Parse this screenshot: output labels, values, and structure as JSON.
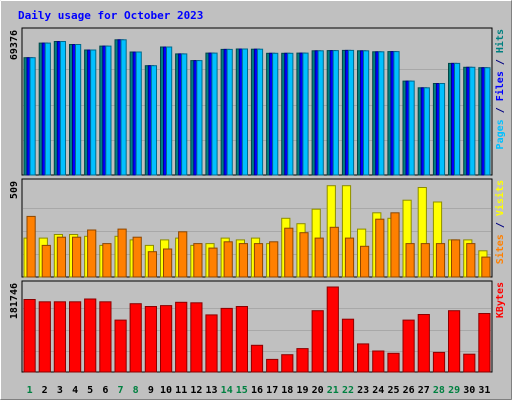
{
  "chart_data": {
    "type": "bar",
    "title": "Daily usage for October 2023",
    "categories": [
      "1",
      "2",
      "3",
      "4",
      "5",
      "6",
      "7",
      "8",
      "9",
      "10",
      "11",
      "12",
      "13",
      "14",
      "15",
      "16",
      "17",
      "18",
      "19",
      "20",
      "21",
      "22",
      "23",
      "24",
      "25",
      "26",
      "27",
      "28",
      "29",
      "30",
      "31"
    ],
    "weekend_days": [
      "1",
      "7",
      "8",
      "14",
      "15",
      "21",
      "22",
      "28",
      "29"
    ],
    "panels": [
      {
        "id": "hits",
        "max_label": "69376",
        "max": 69376,
        "axis_title_parts": [
          {
            "text": "Pages",
            "color": "#00c0ff"
          },
          {
            "text": " / ",
            "color": "#000080"
          },
          {
            "text": "Files",
            "color": "#0000ff"
          },
          {
            "text": " / ",
            "color": "#000080"
          },
          {
            "text": "Hits",
            "color": "#008080"
          }
        ],
        "series": [
          {
            "name": "Hits",
            "color": "#008080",
            "values": [
              57700,
              64900,
              65700,
              64200,
              61500,
              63400,
              66500,
              60500,
              53800,
              63000,
              59600,
              56300,
              60000,
              61800,
              62000,
              61900,
              59900,
              59900,
              60000,
              61100,
              61200,
              61300,
              61100,
              60600,
              60700,
              46200,
              42900,
              45000,
              54900,
              53000,
              52800
            ]
          },
          {
            "name": "Files",
            "color": "#0000ff",
            "values": [
              57700,
              64900,
              65700,
              64200,
              61500,
              63400,
              66500,
              60500,
              53800,
              63000,
              59600,
              56300,
              60000,
              61800,
              62000,
              61900,
              59900,
              59900,
              60000,
              61100,
              61200,
              61300,
              61100,
              60600,
              60700,
              46200,
              42900,
              45000,
              54900,
              53000,
              52800
            ]
          },
          {
            "name": "Pages",
            "color": "#00c0ff",
            "values": [
              57700,
              64900,
              65700,
              64200,
              61500,
              63400,
              66500,
              60500,
              53800,
              63000,
              59600,
              56300,
              60000,
              61800,
              62000,
              61900,
              59900,
              59900,
              60000,
              61100,
              61200,
              61300,
              61100,
              60600,
              60700,
              46200,
              42900,
              45000,
              54900,
              53000,
              52800
            ]
          }
        ]
      },
      {
        "id": "visits",
        "max_label": "509",
        "max": 509,
        "axis_title_parts": [
          {
            "text": "Sites",
            "color": "#ff8000"
          },
          {
            "text": " / ",
            "color": "#000080"
          },
          {
            "text": "Visits",
            "color": "#ffff00"
          }
        ],
        "series": [
          {
            "name": "Visits",
            "color": "#ffff00",
            "values": [
              215,
              215,
              235,
              235,
              225,
              175,
              225,
              205,
              175,
              205,
              215,
              175,
              185,
              215,
              205,
              215,
              185,
              325,
              295,
              375,
              505,
              505,
              265,
              355,
              325,
              425,
              495,
              415,
              205,
              205,
              145
            ]
          },
          {
            "name": "Sites",
            "color": "#ff8000",
            "values": [
              335,
              175,
              220,
              220,
              260,
              185,
              265,
              220,
              140,
              155,
              250,
              185,
              160,
              195,
              185,
              185,
              195,
              270,
              245,
              215,
              275,
              215,
              170,
              320,
              355,
              185,
              185,
              185,
              205,
              185,
              110
            ]
          }
        ]
      },
      {
        "id": "kbytes",
        "max_label": "181746",
        "max": 181746,
        "axis_title_parts": [
          {
            "text": "KBytes",
            "color": "#ff0000"
          }
        ],
        "series": [
          {
            "name": "KBytes",
            "color": "#ff0000",
            "values": [
              155000,
              150000,
              150000,
              150000,
              156000,
              150000,
              111000,
              146000,
              140000,
              142000,
              149000,
              148000,
              122000,
              136000,
              140000,
              57000,
              27000,
              37000,
              50000,
              131000,
              181700,
              113000,
              60000,
              45000,
              40000,
              111000,
              123000,
              42000,
              131000,
              38000,
              125000
            ]
          }
        ]
      }
    ]
  }
}
